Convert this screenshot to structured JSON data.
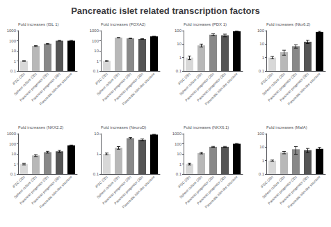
{
  "title": "Pancreatic islet related transcription factors",
  "chart_data": [
    {
      "type": "bar",
      "log": "y",
      "grid": false,
      "categories": [
        "iPSC (2D)",
        "Sphere culture (2D)",
        "Pancreas progenitor (2D)",
        "Pancreas progenitor (3D)",
        "Pancreatic islet-like structure"
      ],
      "ylabel": "Fold increases (ISL 1)",
      "ylim": [
        0.1,
        1000
      ],
      "yticks": [
        0.1,
        1,
        10,
        100,
        1000
      ],
      "values": [
        1.0,
        30.0,
        50.0,
        100.0,
        100.0
      ],
      "errors": [
        0.1,
        3.0,
        4.0,
        6.0,
        7.0
      ],
      "colors": [
        "#d8d8d8",
        "#b8b8b8",
        "#888888",
        "#555555",
        "#000000"
      ]
    },
    {
      "type": "bar",
      "log": "y",
      "grid": false,
      "categories": [
        "iPSC (2D)",
        "Sphere culture (2D)",
        "Pancreas progenitor (2D)",
        "Pancreas progenitor (3D)",
        "Pancreatic islet-like structure"
      ],
      "ylabel": "Fold increases (FOXA2)",
      "ylim": [
        0.1,
        1000
      ],
      "yticks": [
        0.1,
        1,
        10,
        100,
        1000
      ],
      "values": [
        1.0,
        200.0,
        170.0,
        150.0,
        270.0
      ],
      "errors": [
        0.1,
        8.0,
        8.0,
        12.0,
        10.0
      ],
      "colors": [
        "#d8d8d8",
        "#b8b8b8",
        "#888888",
        "#555555",
        "#000000"
      ]
    },
    {
      "type": "bar",
      "log": "y",
      "grid": false,
      "categories": [
        "iPSC (2D)",
        "Sphere culture (2D)",
        "Pancreas progenitor (2D)",
        "Pancreas progenitor (3D)",
        "Pancreatic islet-like structure"
      ],
      "ylabel": "Fold increases (PDX 1)",
      "ylim": [
        0.1,
        100
      ],
      "yticks": [
        0.1,
        1,
        10,
        100
      ],
      "values": [
        1.0,
        8.0,
        50.0,
        45.0,
        90.0
      ],
      "errors": [
        0.3,
        2.0,
        8.0,
        10.0,
        5.0
      ],
      "colors": [
        "#d8d8d8",
        "#b8b8b8",
        "#888888",
        "#555555",
        "#000000"
      ]
    },
    {
      "type": "bar",
      "log": "y",
      "grid": false,
      "categories": [
        "iPSC (2D)",
        "Sphere culture (2D)",
        "Pancreas progenitor (2D)",
        "Pancreas progenitor (3D)",
        "Pancreatic islet-like structure"
      ],
      "ylabel": "Fold increases (Nkx6.2)",
      "ylim": [
        0.1,
        100
      ],
      "yticks": [
        0.1,
        1,
        10,
        100
      ],
      "values": [
        1.0,
        2.5,
        7.0,
        15.0,
        80.0
      ],
      "errors": [
        0.2,
        1.0,
        2.0,
        4.0,
        8.0
      ],
      "colors": [
        "#d8d8d8",
        "#b8b8b8",
        "#888888",
        "#555555",
        "#000000"
      ]
    },
    {
      "type": "bar",
      "log": "y",
      "grid": false,
      "categories": [
        "iPSC (2D)",
        "Sphere culture (2D)",
        "Pancreas progenitor (2D)",
        "Pancreas progenitor (3D)",
        "Pancreatic islet-like structure"
      ],
      "ylabel": "Fold increases (NKX2.2)",
      "ylim": [
        0.1,
        1000
      ],
      "yticks": [
        0.1,
        1,
        10,
        100,
        1000
      ],
      "values": [
        1.0,
        7.0,
        15.0,
        18.0,
        70.0
      ],
      "errors": [
        0.2,
        1.5,
        3.0,
        4.0,
        5.0
      ],
      "colors": [
        "#d8d8d8",
        "#b8b8b8",
        "#888888",
        "#555555",
        "#000000"
      ]
    },
    {
      "type": "bar",
      "log": "y",
      "grid": false,
      "categories": [
        "iPSC (2D)",
        "Sphere culture (2D)",
        "Pancreas progenitor (2D)",
        "Pancreas progenitor (3D)",
        "Pancreatic islet-like structure"
      ],
      "ylabel": "Fold increases (NeuroD)",
      "ylim": [
        0.1,
        10
      ],
      "yticks": [
        0.1,
        1,
        10
      ],
      "values": [
        1.0,
        2.0,
        6.0,
        5.0,
        9.0
      ],
      "errors": [
        0.1,
        0.3,
        0.5,
        0.5,
        0.4
      ],
      "colors": [
        "#d8d8d8",
        "#b8b8b8",
        "#888888",
        "#555555",
        "#000000"
      ]
    },
    {
      "type": "bar",
      "log": "y",
      "grid": false,
      "categories": [
        "iPSC (2D)",
        "Sphere culture (2D)",
        "Pancreas progenitor (2D)",
        "Pancreas progenitor (3D)",
        "Pancreatic islet-like structure"
      ],
      "ylabel": "Fold increases (NKX6.1)",
      "ylim": [
        0.1,
        1000
      ],
      "yticks": [
        0.1,
        1,
        10,
        100,
        1000
      ],
      "values": [
        1.0,
        12.0,
        50.0,
        50.0,
        100.0
      ],
      "errors": [
        0.2,
        2.0,
        5.0,
        5.0,
        8.0
      ],
      "colors": [
        "#d8d8d8",
        "#b8b8b8",
        "#888888",
        "#555555",
        "#000000"
      ]
    },
    {
      "type": "bar",
      "log": "y",
      "grid": false,
      "categories": [
        "iPSC (2D)",
        "Sphere culture (2D)",
        "Pancreas progenitor (2D)",
        "Pancreas progenitor (3D)",
        "Pancreatic islet-like structure"
      ],
      "ylabel": "Fold increases (MafA)",
      "ylim": [
        0.1,
        100
      ],
      "yticks": [
        0.1,
        1,
        10,
        100
      ],
      "values": [
        1.0,
        4.0,
        7.0,
        6.0,
        7.5
      ],
      "errors": [
        0.1,
        0.8,
        4.0,
        2.0,
        2.0
      ],
      "colors": [
        "#d8d8d8",
        "#b8b8b8",
        "#888888",
        "#555555",
        "#000000"
      ]
    }
  ]
}
